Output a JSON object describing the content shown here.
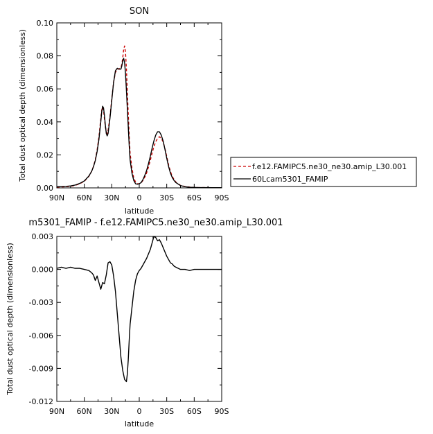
{
  "chart_data": [
    {
      "type": "line",
      "title": "SON",
      "xlabel": "latitude",
      "ylabel": "Total dust optical depth (dimensionless)",
      "xlim": [
        90,
        -90
      ],
      "ylim": [
        0.0,
        0.1
      ],
      "x_ticks": [
        90,
        60,
        30,
        0,
        -30,
        -60,
        -90
      ],
      "x_tick_labels": [
        "90N",
        "60N",
        "30N",
        "0",
        "30S",
        "60S",
        "90S"
      ],
      "y_ticks": [
        0.0,
        0.02,
        0.04,
        0.06,
        0.08,
        0.1
      ],
      "y_tick_labels": [
        "0.00",
        "0.02",
        "0.04",
        "0.06",
        "0.08",
        "0.10"
      ],
      "legend": "right",
      "series": [
        {
          "name": "f.e12.FAMIPC5.ne30_ne30.amip_L30.001",
          "color": "#cc0000",
          "dash": "dashed",
          "x": [
            90,
            85,
            80,
            75,
            70,
            65,
            60,
            55,
            52,
            50,
            48,
            46,
            44,
            42,
            41,
            40,
            39,
            38,
            37,
            36,
            35,
            34,
            32,
            30,
            28,
            26,
            24,
            22,
            20,
            19,
            18,
            17,
            16,
            15,
            14,
            13,
            12,
            11,
            10,
            8,
            6,
            4,
            2,
            0,
            -2,
            -4,
            -6,
            -8,
            -10,
            -12,
            -14,
            -16,
            -18,
            -20,
            -22,
            -24,
            -26,
            -28,
            -30,
            -32,
            -34,
            -36,
            -38,
            -40,
            -45,
            -50,
            -55,
            -60,
            -65,
            -70,
            -80,
            -90
          ],
          "y": [
            0.0005,
            0.0006,
            0.0007,
            0.001,
            0.0015,
            0.0025,
            0.004,
            0.007,
            0.01,
            0.013,
            0.017,
            0.023,
            0.031,
            0.042,
            0.047,
            0.049,
            0.047,
            0.042,
            0.037,
            0.034,
            0.033,
            0.035,
            0.043,
            0.054,
            0.064,
            0.07,
            0.072,
            0.072,
            0.073,
            0.075,
            0.079,
            0.084,
            0.086,
            0.082,
            0.072,
            0.058,
            0.045,
            0.032,
            0.021,
            0.012,
            0.006,
            0.0035,
            0.0025,
            0.0025,
            0.003,
            0.0045,
            0.0065,
            0.009,
            0.0125,
            0.0165,
            0.021,
            0.025,
            0.028,
            0.03,
            0.031,
            0.03,
            0.028,
            0.024,
            0.019,
            0.014,
            0.01,
            0.007,
            0.005,
            0.0035,
            0.0015,
            0.0008,
            0.0005,
            0.0003,
            0.0002,
            0.0002,
            0.0001,
            0.0001
          ]
        },
        {
          "name": "60Lcam5301_FAMIP",
          "color": "#000000",
          "dash": "solid",
          "x": [
            90,
            85,
            80,
            75,
            70,
            65,
            60,
            55,
            52,
            50,
            48,
            46,
            44,
            42,
            41,
            40,
            39,
            38,
            37,
            36,
            35,
            34,
            32,
            30,
            28,
            26,
            24,
            22,
            20,
            19,
            18,
            17,
            16,
            15,
            14,
            13,
            12,
            11,
            10,
            8,
            6,
            4,
            2,
            0,
            -2,
            -4,
            -6,
            -8,
            -10,
            -12,
            -14,
            -16,
            -18,
            -20,
            -22,
            -24,
            -26,
            -28,
            -30,
            -32,
            -34,
            -36,
            -38,
            -40,
            -45,
            -50,
            -55,
            -60,
            -65,
            -70,
            -80,
            -90
          ],
          "y": [
            0.0007,
            0.0008,
            0.0009,
            0.0012,
            0.0017,
            0.0027,
            0.0042,
            0.0072,
            0.01,
            0.0128,
            0.0165,
            0.022,
            0.0295,
            0.04,
            0.046,
            0.0495,
            0.0485,
            0.044,
            0.038,
            0.033,
            0.0315,
            0.033,
            0.042,
            0.053,
            0.064,
            0.071,
            0.0725,
            0.072,
            0.072,
            0.074,
            0.077,
            0.0785,
            0.076,
            0.069,
            0.059,
            0.048,
            0.037,
            0.026,
            0.017,
            0.009,
            0.0045,
            0.0025,
            0.0022,
            0.0025,
            0.0032,
            0.005,
            0.0075,
            0.0105,
            0.0145,
            0.019,
            0.024,
            0.0285,
            0.032,
            0.034,
            0.034,
            0.032,
            0.0285,
            0.0235,
            0.018,
            0.013,
            0.009,
            0.0063,
            0.0045,
            0.0032,
            0.0014,
            0.0007,
            0.0004,
            0.0003,
            0.0002,
            0.0002,
            0.0001,
            0.0001
          ]
        }
      ]
    },
    {
      "type": "line",
      "title": "m5301_FAMIP - f.e12.FAMIPC5.ne30_ne30.amip_L30.001",
      "xlabel": "latitude",
      "ylabel": "Total dust optical depth (dimensionless)",
      "xlim": [
        90,
        -90
      ],
      "ylim": [
        -0.012,
        0.003
      ],
      "x_ticks": [
        90,
        60,
        30,
        0,
        -30,
        -60,
        -90
      ],
      "x_tick_labels": [
        "90N",
        "60N",
        "30N",
        "0",
        "30S",
        "60S",
        "90S"
      ],
      "y_ticks": [
        -0.012,
        -0.009,
        -0.006,
        -0.003,
        0.0,
        0.003
      ],
      "y_tick_labels": [
        "-0.012",
        "-0.009",
        "-0.006",
        "-0.003",
        "0.000",
        "0.003"
      ],
      "series": [
        {
          "color": "#000000",
          "dash": "solid",
          "x": [
            90,
            85,
            80,
            75,
            70,
            65,
            60,
            55,
            52,
            50,
            48,
            46,
            44,
            42,
            40,
            38,
            36,
            34,
            32,
            30,
            28,
            26,
            24,
            22,
            20,
            18,
            16,
            14,
            13,
            12,
            11,
            10,
            8,
            6,
            4,
            2,
            0,
            -2,
            -4,
            -6,
            -8,
            -10,
            -12,
            -14,
            -16,
            -18,
            -20,
            -22,
            -24,
            -26,
            -28,
            -30,
            -32,
            -34,
            -36,
            -38,
            -40,
            -45,
            -50,
            -55,
            -60,
            -65,
            -70,
            -80,
            -90
          ],
          "y": [
            0.0001,
            0.0002,
            0.0001,
            0.0002,
            0.0001,
            0.0001,
            0.0,
            -0.0001,
            -0.0003,
            -0.0005,
            -0.001,
            -0.0006,
            -0.0012,
            -0.0018,
            -0.0012,
            -0.0013,
            -0.0005,
            0.0006,
            0.0007,
            0.0004,
            -0.0006,
            -0.002,
            -0.004,
            -0.006,
            -0.008,
            -0.0092,
            -0.01,
            -0.0102,
            -0.0095,
            -0.0082,
            -0.0065,
            -0.005,
            -0.0035,
            -0.002,
            -0.001,
            -0.0004,
            -0.0001,
            0.0001,
            0.0004,
            0.0007,
            0.001,
            0.0014,
            0.0018,
            0.0024,
            0.003,
            0.0029,
            0.0026,
            0.0027,
            0.0024,
            0.002,
            0.0016,
            0.0012,
            0.0009,
            0.0006,
            0.0005,
            0.0003,
            0.0002,
            0.0,
            0.0,
            -0.0001,
            0.0,
            0.0,
            0.0,
            0.0,
            0.0
          ]
        }
      ]
    }
  ]
}
